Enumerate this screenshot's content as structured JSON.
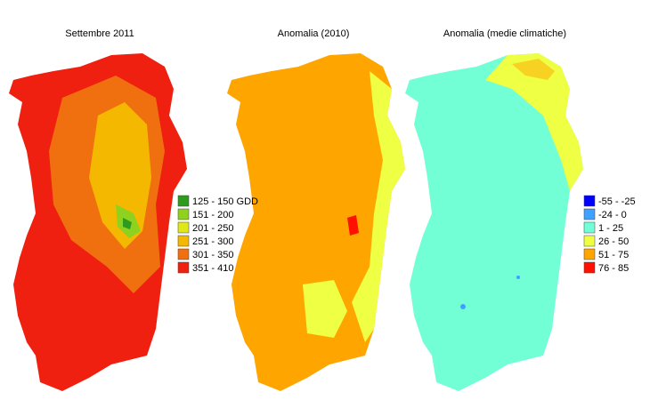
{
  "maps": [
    {
      "title": "Settembre 2011",
      "legend": [
        {
          "label": "125 - 150 GDD",
          "color": "#2e9a1e"
        },
        {
          "label": "151 - 200",
          "color": "#8ed11e"
        },
        {
          "label": "201 - 250",
          "color": "#e0e81a"
        },
        {
          "label": "251 - 300",
          "color": "#f5b800"
        },
        {
          "label": "301 - 350",
          "color": "#f07010"
        },
        {
          "label": "351 - 410",
          "color": "#f02010"
        }
      ]
    },
    {
      "title": "Anomalia (2010)"
    },
    {
      "title": "Anomalia (medie climatiche)",
      "legend": [
        {
          "label": "-55 - -25",
          "color": "#0000ff"
        },
        {
          "label": "-24 - 0",
          "color": "#3fa0ff"
        },
        {
          "label": "1 - 25",
          "color": "#72ffd6"
        },
        {
          "label": "26 - 50",
          "color": "#eeff44"
        },
        {
          "label": "51 - 75",
          "color": "#ffa500"
        },
        {
          "label": "76 - 85",
          "color": "#ff1000"
        }
      ]
    }
  ]
}
